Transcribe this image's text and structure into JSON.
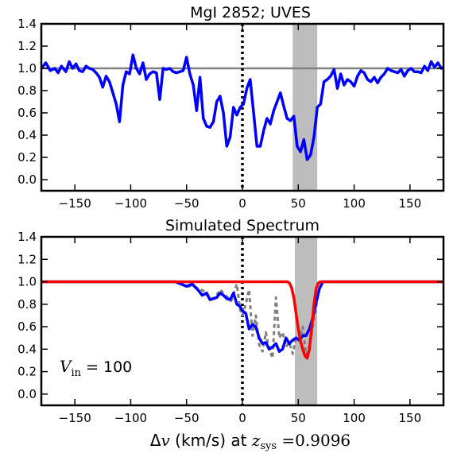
{
  "colors": {
    "observed": "#0000ff",
    "model": "#ff0000",
    "observed_ref": "#808080",
    "continuum": "#808080",
    "shade": "#bdbdbd",
    "zero_line": "#000000"
  },
  "chart_data": [
    {
      "type": "line",
      "title": "MgI 2852; UVES",
      "xlim": [
        -180,
        180
      ],
      "ylim": [
        -0.1,
        1.4
      ],
      "xticks": [
        -150,
        -100,
        -50,
        0,
        50,
        100,
        150
      ],
      "yticks": [
        0.0,
        0.2,
        0.4,
        0.6,
        0.8,
        1.0,
        1.2,
        1.4
      ],
      "xtick_labels": [
        "−150",
        "−100",
        "−50",
        "0",
        "50",
        "100",
        "150"
      ],
      "ytick_labels": [
        "0.0",
        "0.2",
        "0.4",
        "0.6",
        "0.8",
        "1.0",
        "1.2",
        "1.4"
      ],
      "continuum": 1.0,
      "zero_line_x": 0,
      "shaded_x": [
        45,
        67
      ],
      "series": [
        {
          "x": [
            -180,
            -176,
            -172,
            -168,
            -165,
            -162,
            -158,
            -155,
            -152,
            -149,
            -146,
            -143,
            -140,
            -137,
            -134,
            -131,
            -128,
            -125,
            -122,
            -119,
            -116,
            -113,
            -110,
            -107,
            -104,
            -101,
            -98,
            -95,
            -92,
            -89,
            -86,
            -83,
            -80,
            -77,
            -74,
            -71,
            -68,
            -65,
            -62,
            -59,
            -56,
            -53,
            -50,
            -47,
            -44,
            -41,
            -38,
            -35,
            -32,
            -29,
            -26,
            -23,
            -20,
            -17,
            -14,
            -11,
            -8,
            -5,
            -2,
            1,
            4,
            7,
            10,
            13,
            16,
            19,
            22,
            25,
            28,
            31,
            34,
            37,
            40,
            43,
            46,
            49,
            52,
            55,
            58,
            61,
            64,
            67,
            70,
            73,
            76,
            79,
            82,
            85,
            88,
            91,
            94,
            97,
            100,
            103,
            106,
            109,
            112,
            115,
            118,
            121,
            124,
            127,
            130,
            133,
            136,
            139,
            142,
            145,
            148,
            151,
            154,
            157,
            160,
            163,
            166,
            169,
            172,
            175,
            178,
            180
          ],
          "values": [
            1.0,
            1.05,
            0.98,
            1.0,
            0.96,
            1.02,
            0.97,
            1.06,
            1.0,
            1.04,
            0.98,
            0.97,
            1.02,
            1.0,
            0.99,
            0.96,
            0.92,
            0.83,
            0.93,
            0.88,
            0.78,
            0.68,
            0.52,
            0.85,
            0.97,
            0.95,
            1.12,
            1.0,
            0.95,
            1.05,
            0.9,
            0.95,
            0.97,
            0.96,
            0.72,
            1.0,
            0.99,
            1.0,
            0.97,
            0.96,
            0.97,
            0.98,
            1.1,
            0.95,
            0.85,
            0.62,
            0.92,
            0.55,
            0.48,
            0.47,
            0.52,
            0.7,
            0.75,
            0.6,
            0.3,
            0.38,
            0.65,
            0.58,
            0.65,
            0.68,
            0.82,
            0.9,
            0.6,
            0.3,
            0.3,
            0.44,
            0.55,
            0.5,
            0.62,
            0.7,
            0.78,
            0.66,
            0.55,
            0.53,
            0.57,
            0.3,
            0.25,
            0.36,
            0.18,
            0.22,
            0.38,
            0.65,
            0.68,
            0.88,
            0.9,
            0.93,
            0.99,
            0.82,
            0.95,
            0.85,
            0.9,
            0.88,
            0.84,
            0.93,
            0.98,
            0.96,
            0.9,
            0.88,
            0.92,
            0.87,
            0.92,
            0.95,
            1.0,
            0.98,
            0.97,
            0.96,
            0.99,
            0.93,
            0.98,
            1.0,
            0.97,
            0.97,
            0.96,
            1.02,
            0.98,
            1.06,
            1.01,
            1.05,
            1.0,
            1.01
          ]
        }
      ]
    },
    {
      "type": "line",
      "title": "Simulated Spectrum",
      "xlim": [
        -180,
        180
      ],
      "ylim": [
        -0.1,
        1.4
      ],
      "xticks": [
        -150,
        -100,
        -50,
        0,
        50,
        100,
        150
      ],
      "yticks": [
        0.0,
        0.2,
        0.4,
        0.6,
        0.8,
        1.0,
        1.2,
        1.4
      ],
      "xtick_labels": [
        "−150",
        "−100",
        "−50",
        "0",
        "50",
        "100",
        "150"
      ],
      "ytick_labels": [
        "0.0",
        "0.2",
        "0.4",
        "0.6",
        "0.8",
        "1.0",
        "1.2",
        "1.4"
      ],
      "zero_line_x": 0,
      "shaded_x": [
        47,
        67
      ],
      "xlabel_parts": [
        "Δ",
        "v",
        " (km/s) at ",
        "z",
        "sys",
        " =0.9096"
      ],
      "annotation_parts": [
        "V",
        "in",
        " = 100"
      ],
      "series": [
        {
          "role": "observed-reference",
          "x": [
            -60,
            -55,
            -50,
            -45,
            -40,
            -35,
            -30,
            -25,
            -20,
            -15,
            -10,
            -5,
            -2,
            0,
            3,
            6,
            9,
            12,
            15,
            18,
            21,
            24,
            27,
            30,
            33,
            36,
            39,
            42,
            45,
            48,
            51,
            54,
            57,
            60,
            63,
            66,
            69,
            72
          ],
          "values": [
            1.0,
            0.99,
            0.95,
            0.97,
            0.94,
            0.92,
            0.86,
            0.85,
            0.93,
            0.88,
            0.83,
            0.98,
            0.75,
            0.7,
            0.8,
            0.93,
            0.52,
            0.7,
            0.44,
            0.38,
            0.55,
            0.4,
            0.32,
            0.86,
            0.5,
            0.55,
            0.42,
            0.46,
            0.36,
            0.5,
            0.48,
            0.6,
            0.35,
            0.42,
            0.6,
            0.78,
            0.95,
            1.0
          ]
        },
        {
          "role": "simulated",
          "x": [
            -180,
            -60,
            -55,
            -50,
            -45,
            -40,
            -36,
            -32,
            -29,
            -26,
            -23,
            -20,
            -17,
            -14,
            -11,
            -8,
            -5,
            -2,
            0,
            3,
            6,
            9,
            12,
            15,
            18,
            21,
            24,
            27,
            30,
            33,
            36,
            39,
            42,
            45,
            48,
            51,
            54,
            57,
            60,
            63,
            66,
            69,
            72,
            75,
            180
          ],
          "values": [
            1.0,
            1.0,
            0.98,
            0.96,
            0.98,
            0.93,
            0.88,
            0.9,
            0.84,
            0.85,
            0.86,
            0.9,
            0.88,
            0.85,
            0.84,
            0.9,
            0.8,
            0.78,
            0.74,
            0.72,
            0.58,
            0.62,
            0.6,
            0.5,
            0.45,
            0.46,
            0.4,
            0.42,
            0.45,
            0.38,
            0.4,
            0.5,
            0.45,
            0.48,
            0.5,
            0.48,
            0.52,
            0.52,
            0.58,
            0.68,
            0.82,
            0.94,
            1.0,
            1.0,
            1.0
          ]
        },
        {
          "role": "model",
          "x": [
            -180,
            40,
            42,
            44,
            46,
            48,
            50,
            52,
            54,
            56,
            58,
            60,
            62,
            64,
            66,
            68,
            70,
            180
          ],
          "values": [
            1.0,
            1.0,
            0.99,
            0.95,
            0.86,
            0.72,
            0.58,
            0.47,
            0.4,
            0.34,
            0.32,
            0.4,
            0.58,
            0.8,
            0.94,
            0.99,
            1.0,
            1.0
          ]
        }
      ]
    }
  ]
}
